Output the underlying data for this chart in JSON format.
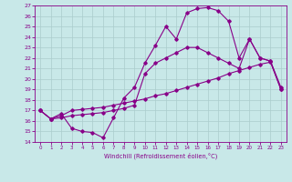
{
  "xlabel": "Windchill (Refroidissement éolien,°C)",
  "xlim": [
    -0.5,
    23.5
  ],
  "ylim": [
    14,
    27
  ],
  "xticks": [
    0,
    1,
    2,
    3,
    4,
    5,
    6,
    7,
    8,
    9,
    10,
    11,
    12,
    13,
    14,
    15,
    16,
    17,
    18,
    19,
    20,
    21,
    22,
    23
  ],
  "yticks": [
    14,
    15,
    16,
    17,
    18,
    19,
    20,
    21,
    22,
    23,
    24,
    25,
    26,
    27
  ],
  "line_color": "#880088",
  "bg_color": "#c8e8e8",
  "grid_color": "#aacccc",
  "curve1_x": [
    0,
    1,
    2,
    3,
    4,
    5,
    6,
    7,
    8,
    9,
    10,
    11,
    12,
    13,
    14,
    15,
    16,
    17,
    18,
    19,
    20,
    21,
    22,
    23
  ],
  "curve1_y": [
    17.0,
    16.2,
    16.5,
    17.0,
    17.1,
    17.2,
    17.3,
    17.5,
    17.7,
    17.9,
    18.1,
    18.4,
    18.6,
    18.9,
    19.2,
    19.5,
    19.8,
    20.1,
    20.5,
    20.8,
    21.1,
    21.4,
    21.6,
    19.0
  ],
  "curve2_x": [
    0,
    1,
    2,
    3,
    4,
    5,
    6,
    7,
    8,
    9,
    10,
    11,
    12,
    13,
    14,
    15,
    16,
    17,
    18,
    19,
    20,
    21,
    22,
    23
  ],
  "curve2_y": [
    17.0,
    16.2,
    16.7,
    15.3,
    15.0,
    14.9,
    14.4,
    16.3,
    18.2,
    19.2,
    21.5,
    23.2,
    25.0,
    23.8,
    26.3,
    26.7,
    26.8,
    26.5,
    25.5,
    22.0,
    23.8,
    22.0,
    21.7,
    19.2
  ],
  "curve3_x": [
    0,
    1,
    2,
    3,
    4,
    5,
    6,
    7,
    8,
    9,
    10,
    11,
    12,
    13,
    14,
    15,
    16,
    17,
    18,
    19,
    20,
    21,
    22,
    23
  ],
  "curve3_y": [
    17.0,
    16.2,
    16.3,
    16.5,
    16.6,
    16.7,
    16.8,
    17.0,
    17.2,
    17.5,
    20.5,
    21.5,
    22.0,
    22.5,
    23.0,
    23.0,
    22.5,
    22.0,
    21.5,
    21.0,
    23.8,
    22.0,
    21.7,
    19.0
  ]
}
